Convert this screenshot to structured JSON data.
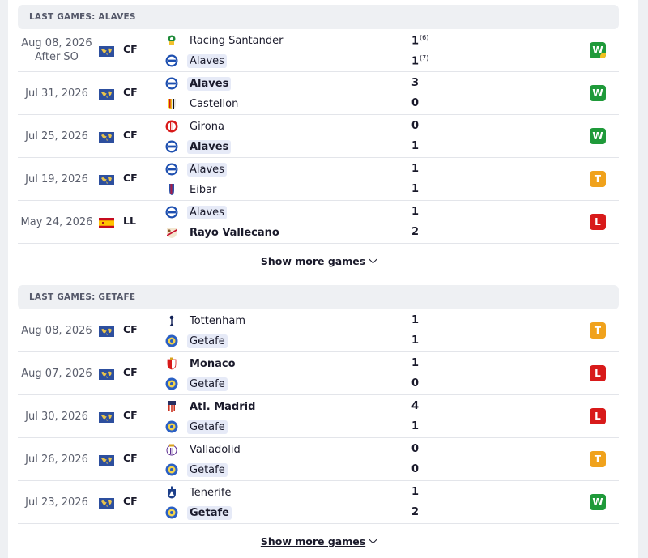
{
  "alaves": {
    "header": "LAST GAMES: ALAVES",
    "show_more": "Show more games",
    "rows": [
      {
        "date": "Aug 08, 2026",
        "note": "After SO",
        "comp": "CF",
        "comp_flag": "world-flag-icon",
        "home": {
          "name": "Racing Santander",
          "hl": false,
          "win": false,
          "logo": "racing-santander-logo-icon"
        },
        "away": {
          "name": "Alaves",
          "hl": true,
          "win": false,
          "logo": "alaves-logo-icon"
        },
        "home_score": "1",
        "home_pen": "(6)",
        "away_score": "1",
        "away_pen": "(7)",
        "result": "W"
      },
      {
        "date": "Jul 31, 2026",
        "note": "",
        "comp": "CF",
        "comp_flag": "world-flag-icon",
        "home": {
          "name": "Alaves",
          "hl": true,
          "win": true,
          "logo": "alaves-logo-icon"
        },
        "away": {
          "name": "Castellon",
          "hl": false,
          "win": false,
          "logo": "castellon-logo-icon"
        },
        "home_score": "3",
        "home_pen": "",
        "away_score": "0",
        "away_pen": "",
        "result": "W"
      },
      {
        "date": "Jul 25, 2026",
        "note": "",
        "comp": "CF",
        "comp_flag": "world-flag-icon",
        "home": {
          "name": "Girona",
          "hl": false,
          "win": false,
          "logo": "girona-logo-icon"
        },
        "away": {
          "name": "Alaves",
          "hl": true,
          "win": true,
          "logo": "alaves-logo-icon"
        },
        "home_score": "0",
        "home_pen": "",
        "away_score": "1",
        "away_pen": "",
        "result": "W"
      },
      {
        "date": "Jul 19, 2026",
        "note": "",
        "comp": "CF",
        "comp_flag": "world-flag-icon",
        "home": {
          "name": "Alaves",
          "hl": true,
          "win": false,
          "logo": "alaves-logo-icon"
        },
        "away": {
          "name": "Eibar",
          "hl": false,
          "win": false,
          "logo": "eibar-logo-icon"
        },
        "home_score": "1",
        "home_pen": "",
        "away_score": "1",
        "away_pen": "",
        "result": "T"
      },
      {
        "date": "May 24, 2026",
        "note": "",
        "comp": "LL",
        "comp_flag": "spain-flag-icon",
        "home": {
          "name": "Alaves",
          "hl": true,
          "win": false,
          "logo": "alaves-logo-icon"
        },
        "away": {
          "name": "Rayo Vallecano",
          "hl": false,
          "win": true,
          "logo": "rayo-vallecano-logo-icon"
        },
        "home_score": "1",
        "home_pen": "",
        "away_score": "2",
        "away_pen": "",
        "result": "L"
      }
    ]
  },
  "getafe": {
    "header": "LAST GAMES: GETAFE",
    "show_more": "Show more games",
    "rows": [
      {
        "date": "Aug 08, 2026",
        "note": "",
        "comp": "CF",
        "comp_flag": "world-flag-icon",
        "home": {
          "name": "Tottenham",
          "hl": false,
          "win": false,
          "logo": "tottenham-logo-icon"
        },
        "away": {
          "name": "Getafe",
          "hl": true,
          "win": false,
          "logo": "getafe-logo-icon"
        },
        "home_score": "1",
        "home_pen": "",
        "away_score": "1",
        "away_pen": "",
        "result": "T"
      },
      {
        "date": "Aug 07, 2026",
        "note": "",
        "comp": "CF",
        "comp_flag": "world-flag-icon",
        "home": {
          "name": "Monaco",
          "hl": false,
          "win": true,
          "logo": "monaco-logo-icon"
        },
        "away": {
          "name": "Getafe",
          "hl": true,
          "win": false,
          "logo": "getafe-logo-icon"
        },
        "home_score": "1",
        "home_pen": "",
        "away_score": "0",
        "away_pen": "",
        "result": "L"
      },
      {
        "date": "Jul 30, 2026",
        "note": "",
        "comp": "CF",
        "comp_flag": "world-flag-icon",
        "home": {
          "name": "Atl. Madrid",
          "hl": false,
          "win": true,
          "logo": "atletico-madrid-logo-icon"
        },
        "away": {
          "name": "Getafe",
          "hl": true,
          "win": false,
          "logo": "getafe-logo-icon"
        },
        "home_score": "4",
        "home_pen": "",
        "away_score": "1",
        "away_pen": "",
        "result": "L"
      },
      {
        "date": "Jul 26, 2026",
        "note": "",
        "comp": "CF",
        "comp_flag": "world-flag-icon",
        "home": {
          "name": "Valladolid",
          "hl": false,
          "win": false,
          "logo": "valladolid-logo-icon"
        },
        "away": {
          "name": "Getafe",
          "hl": true,
          "win": false,
          "logo": "getafe-logo-icon"
        },
        "home_score": "0",
        "home_pen": "",
        "away_score": "0",
        "away_pen": "",
        "result": "T"
      },
      {
        "date": "Jul 23, 2026",
        "note": "",
        "comp": "CF",
        "comp_flag": "world-flag-icon",
        "home": {
          "name": "Tenerife",
          "hl": false,
          "win": false,
          "logo": "tenerife-logo-icon"
        },
        "away": {
          "name": "Getafe",
          "hl": true,
          "win": true,
          "logo": "getafe-logo-icon"
        },
        "home_score": "1",
        "home_pen": "",
        "away_score": "2",
        "away_pen": "",
        "result": "W"
      }
    ]
  },
  "colors": {
    "win": "#1f9a3a",
    "draw": "#f0a21c",
    "loss": "#d81a1a",
    "highlight": "#e6eaf7",
    "header_bg": "#eef0f3"
  }
}
